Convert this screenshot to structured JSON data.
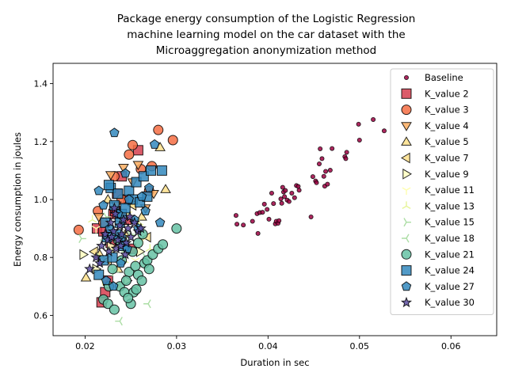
{
  "chart_data": {
    "type": "scatter",
    "title": [
      "Package energy consumption of the Logistic Regression",
      "machine learning model on the car dataset with the",
      "Microaggregation anonymization method"
    ],
    "xlabel": "Duration in sec",
    "ylabel": "Energy consumption in joules",
    "xlim": [
      0.0165,
      0.065
    ],
    "ylim": [
      0.53,
      1.47
    ],
    "xticks": [
      "0.02",
      "0.03",
      "0.04",
      "0.05",
      "0.06"
    ],
    "yticks": [
      "0.6",
      "0.8",
      "1.0",
      "1.2",
      "1.4"
    ],
    "legend_position": "top-right",
    "grid": false,
    "series": [
      {
        "name": "Baseline",
        "marker": "dot",
        "color": "#9e0142",
        "points": [
          [
            0.0365,
            0.945
          ],
          [
            0.0366,
            0.915
          ],
          [
            0.0373,
            0.912
          ],
          [
            0.0383,
            0.925
          ],
          [
            0.0388,
            0.951
          ],
          [
            0.0389,
            0.883
          ],
          [
            0.0391,
            0.955
          ],
          [
            0.0394,
            0.956
          ],
          [
            0.0396,
            0.984
          ],
          [
            0.0399,
            0.966
          ],
          [
            0.0401,
            0.932
          ],
          [
            0.0404,
            1.022
          ],
          [
            0.0406,
            0.986
          ],
          [
            0.0408,
            0.916
          ],
          [
            0.0409,
            0.925
          ],
          [
            0.0411,
            0.918
          ],
          [
            0.0412,
            0.927
          ],
          [
            0.0414,
            1.002
          ],
          [
            0.0415,
            0.987
          ],
          [
            0.0416,
            1.042
          ],
          [
            0.0417,
            1.026
          ],
          [
            0.0418,
            1.01
          ],
          [
            0.0419,
            1.031
          ],
          [
            0.0421,
            0.998
          ],
          [
            0.0423,
            0.993
          ],
          [
            0.0426,
            1.022
          ],
          [
            0.0429,
            1.006
          ],
          [
            0.0431,
            1.048
          ],
          [
            0.0433,
            1.045
          ],
          [
            0.0434,
            1.032
          ],
          [
            0.0447,
            0.94
          ],
          [
            0.0449,
            1.079
          ],
          [
            0.0452,
            1.064
          ],
          [
            0.0453,
            1.058
          ],
          [
            0.0456,
            1.123
          ],
          [
            0.0457,
            1.175
          ],
          [
            0.0459,
            1.141
          ],
          [
            0.0461,
            1.08
          ],
          [
            0.0462,
            1.046
          ],
          [
            0.0463,
            1.097
          ],
          [
            0.0465,
            1.053
          ],
          [
            0.0468,
            1.101
          ],
          [
            0.047,
            1.176
          ],
          [
            0.0484,
            1.148
          ],
          [
            0.0485,
            1.141
          ],
          [
            0.0486,
            1.163
          ],
          [
            0.0499,
            1.26
          ],
          [
            0.05,
            1.205
          ],
          [
            0.0515,
            1.276
          ],
          [
            0.0527,
            1.237
          ]
        ]
      },
      {
        "name": "K_value 2",
        "marker": "square",
        "color": "#d53e4f",
        "points": [
          [
            0.0218,
            0.645
          ],
          [
            0.0222,
            0.68
          ],
          [
            0.0225,
            0.72
          ],
          [
            0.0228,
            0.85
          ],
          [
            0.0231,
            0.95
          ],
          [
            0.0235,
            1.02
          ],
          [
            0.024,
            1.08
          ],
          [
            0.0245,
            0.93
          ],
          [
            0.025,
            0.83
          ],
          [
            0.0258,
            1.17
          ],
          [
            0.0213,
            0.9
          ],
          [
            0.022,
            0.89
          ],
          [
            0.0233,
            0.96
          ],
          [
            0.0247,
            1.0
          ]
        ]
      },
      {
        "name": "K_value 3",
        "marker": "circle",
        "color": "#f46d43",
        "points": [
          [
            0.0193,
            0.895
          ],
          [
            0.0214,
            0.96
          ],
          [
            0.0232,
            1.08
          ],
          [
            0.0248,
            1.155
          ],
          [
            0.0252,
            1.188
          ],
          [
            0.0261,
            1.105
          ],
          [
            0.0273,
            1.115
          ],
          [
            0.028,
            1.24
          ],
          [
            0.0296,
            1.205
          ],
          [
            0.022,
            0.92
          ],
          [
            0.024,
            1.0
          ],
          [
            0.027,
            1.03
          ]
        ]
      },
      {
        "name": "K_value 4",
        "marker": "tri-down",
        "color": "#fdae61",
        "points": [
          [
            0.0228,
            1.085
          ],
          [
            0.0242,
            1.11
          ],
          [
            0.0258,
            1.12
          ],
          [
            0.0275,
            1.02
          ],
          [
            0.0215,
            0.94
          ],
          [
            0.0234,
            0.98
          ],
          [
            0.0252,
            1.06
          ],
          [
            0.0266,
            0.97
          ]
        ]
      },
      {
        "name": "K_value 5",
        "marker": "tri-up",
        "color": "#fee08b",
        "points": [
          [
            0.0201,
            0.73
          ],
          [
            0.0282,
            1.18
          ],
          [
            0.0288,
            1.035
          ],
          [
            0.0216,
            0.81
          ],
          [
            0.0236,
            0.76
          ],
          [
            0.0262,
            0.94
          ],
          [
            0.0244,
            0.88
          ],
          [
            0.0225,
            1.0
          ]
        ]
      },
      {
        "name": "K_value 7",
        "marker": "tri-left",
        "color": "#fee08b",
        "points": [
          [
            0.0225,
            0.79
          ],
          [
            0.0238,
            0.93
          ],
          [
            0.0252,
            0.98
          ],
          [
            0.0268,
            0.87
          ],
          [
            0.021,
            0.82
          ]
        ]
      },
      {
        "name": "K_value 9",
        "marker": "tri-right",
        "color": "#ffffbf",
        "points": [
          [
            0.0198,
            0.81
          ],
          [
            0.0212,
            0.76
          ],
          [
            0.0228,
            0.84
          ],
          [
            0.0246,
            0.72
          ],
          [
            0.026,
            0.82
          ]
        ]
      },
      {
        "name": "K_value 11",
        "marker": "y-down",
        "color": "#fefeb0",
        "points": [
          [
            0.0212,
            0.9
          ],
          [
            0.023,
            0.83
          ],
          [
            0.0247,
            0.95
          ],
          [
            0.0263,
            0.86
          ],
          [
            0.0219,
            0.72
          ],
          [
            0.0255,
            0.79
          ]
        ]
      },
      {
        "name": "K_value 13",
        "marker": "y-up",
        "color": "#e6f598",
        "points": [
          [
            0.0208,
            0.93
          ],
          [
            0.0226,
            0.87
          ],
          [
            0.0243,
            0.79
          ],
          [
            0.0259,
            0.92
          ],
          [
            0.0238,
            0.7
          ],
          [
            0.0271,
            0.83
          ]
        ]
      },
      {
        "name": "K_value 15",
        "marker": "y-left",
        "color": "#abdda4",
        "points": [
          [
            0.0196,
            0.865
          ],
          [
            0.0216,
            0.8
          ],
          [
            0.0232,
            0.75
          ],
          [
            0.0249,
            0.88
          ],
          [
            0.0266,
            0.8
          ],
          [
            0.0223,
            0.94
          ]
        ]
      },
      {
        "name": "K_value 18",
        "marker": "y-right",
        "color": "#abdda4",
        "points": [
          [
            0.0238,
            0.58
          ],
          [
            0.0269,
            0.64
          ],
          [
            0.0221,
            0.86
          ],
          [
            0.0245,
            0.82
          ],
          [
            0.0257,
            0.7
          ]
        ]
      },
      {
        "name": "K_value 21",
        "marker": "circle",
        "color": "#66c2a5",
        "points": [
          [
            0.022,
            0.655
          ],
          [
            0.0225,
            0.64
          ],
          [
            0.0232,
            0.62
          ],
          [
            0.0238,
            0.7
          ],
          [
            0.0243,
            0.68
          ],
          [
            0.0248,
            0.75
          ],
          [
            0.025,
            0.64
          ],
          [
            0.0253,
            0.68
          ],
          [
            0.0255,
            0.77
          ],
          [
            0.0258,
            0.74
          ],
          [
            0.0262,
            0.72
          ],
          [
            0.0265,
            0.78
          ],
          [
            0.0268,
            0.79
          ],
          [
            0.027,
            0.76
          ],
          [
            0.0274,
            0.81
          ],
          [
            0.028,
            0.83
          ],
          [
            0.0285,
            0.845
          ],
          [
            0.03,
            0.9
          ],
          [
            0.023,
            0.76
          ],
          [
            0.0245,
            0.72
          ],
          [
            0.0252,
            0.82
          ],
          [
            0.0258,
            0.85
          ],
          [
            0.0263,
            0.88
          ],
          [
            0.0236,
            0.86
          ],
          [
            0.0226,
            0.7
          ],
          [
            0.0247,
            0.66
          ],
          [
            0.024,
            0.79
          ],
          [
            0.0256,
            0.69
          ]
        ]
      },
      {
        "name": "K_value 24",
        "marker": "square",
        "color": "#3288bd",
        "points": [
          [
            0.0215,
            0.74
          ],
          [
            0.022,
            0.79
          ],
          [
            0.0224,
            0.87
          ],
          [
            0.0228,
            1.04
          ],
          [
            0.0232,
            0.98
          ],
          [
            0.0236,
            1.02
          ],
          [
            0.024,
            0.95
          ],
          [
            0.0244,
            0.97
          ],
          [
            0.0248,
            1.03
          ],
          [
            0.0252,
            1.0
          ],
          [
            0.0256,
            1.06
          ],
          [
            0.026,
            0.99
          ],
          [
            0.0264,
            1.08
          ],
          [
            0.0268,
            1.01
          ],
          [
            0.0272,
            1.1
          ],
          [
            0.0284,
            1.1
          ],
          [
            0.0226,
            1.05
          ],
          [
            0.0234,
            0.88
          ],
          [
            0.0238,
            0.92
          ],
          [
            0.0242,
            0.84
          ],
          [
            0.023,
            0.8
          ],
          [
            0.0222,
            0.92
          ]
        ]
      },
      {
        "name": "K_value 27",
        "marker": "pentagon",
        "color": "#3288bd",
        "points": [
          [
            0.0215,
            1.03
          ],
          [
            0.022,
            0.98
          ],
          [
            0.0227,
            0.9
          ],
          [
            0.0232,
            1.23
          ],
          [
            0.0236,
            0.95
          ],
          [
            0.024,
            0.87
          ],
          [
            0.0244,
            1.09
          ],
          [
            0.0248,
            1.0
          ],
          [
            0.0254,
            0.93
          ],
          [
            0.0262,
            1.01
          ],
          [
            0.0266,
            0.96
          ],
          [
            0.027,
            1.04
          ],
          [
            0.0276,
            1.19
          ],
          [
            0.0282,
            0.92
          ],
          [
            0.0223,
            0.72
          ],
          [
            0.0231,
            0.7
          ],
          [
            0.0246,
            0.83
          ],
          [
            0.0258,
            0.9
          ],
          [
            0.0239,
            0.78
          ]
        ]
      },
      {
        "name": "K_value 30",
        "marker": "star",
        "color": "#5e4fa2",
        "points": [
          [
            0.0205,
            0.76
          ],
          [
            0.0212,
            0.8
          ],
          [
            0.0218,
            0.84
          ],
          [
            0.0222,
            0.88
          ],
          [
            0.0225,
            0.86
          ],
          [
            0.0228,
            0.92
          ],
          [
            0.0231,
            0.89
          ],
          [
            0.0233,
            0.95
          ],
          [
            0.0236,
            0.86
          ],
          [
            0.0238,
            0.91
          ],
          [
            0.024,
            0.88
          ],
          [
            0.0242,
            0.93
          ],
          [
            0.0245,
            0.85
          ],
          [
            0.0247,
            0.9
          ],
          [
            0.025,
            0.87
          ],
          [
            0.0254,
            0.92
          ],
          [
            0.0258,
            0.89
          ],
          [
            0.0261,
            0.9
          ],
          [
            0.0216,
            0.78
          ],
          [
            0.0226,
            0.82
          ],
          [
            0.0234,
            0.83
          ],
          [
            0.0244,
            0.81
          ],
          [
            0.0232,
            0.97
          ],
          [
            0.0229,
            0.87
          ],
          [
            0.0239,
            0.84
          ],
          [
            0.0249,
            0.94
          ]
        ]
      }
    ]
  }
}
